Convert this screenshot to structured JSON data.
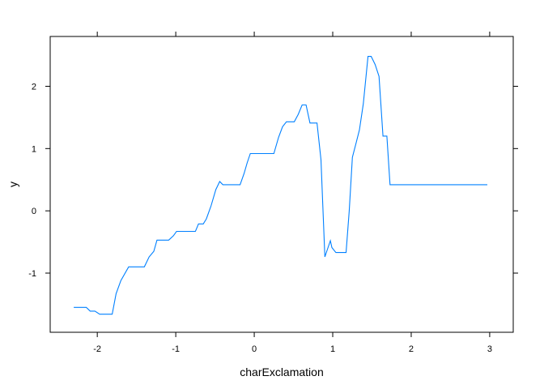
{
  "chart_data": {
    "type": "line",
    "title": "",
    "xlabel": "charExclamation",
    "ylabel": "y",
    "xlim": [
      -2.6,
      3.3
    ],
    "ylim": [
      -1.95,
      2.8
    ],
    "grid": false,
    "legend": "none",
    "colors": {
      "line": "#0080ff",
      "frame": "#000000"
    },
    "x_ticks": [
      -2,
      -1,
      0,
      1,
      2,
      3
    ],
    "x_tick_labels": [
      "-2",
      "-1",
      "0",
      "1",
      "2",
      "3"
    ],
    "y_ticks": [
      -1,
      0,
      1,
      2
    ],
    "y_tick_labels": [
      "-1",
      "0",
      "1",
      "2"
    ],
    "series": [
      {
        "x": [
          -2.3,
          -2.14,
          -2.09,
          -2.03,
          -1.97,
          -1.81,
          -1.76,
          -1.7,
          -1.6,
          -1.55,
          -1.4,
          -1.34,
          -1.28,
          -1.24,
          -1.09,
          -1.03,
          -0.99,
          -0.89,
          -0.75,
          -0.71,
          -0.65,
          -0.61,
          -0.55,
          -0.49,
          -0.44,
          -0.4,
          -0.18,
          -0.13,
          -0.09,
          -0.05,
          0.0,
          0.25,
          0.31,
          0.36,
          0.41,
          0.51,
          0.56,
          0.61,
          0.66,
          0.71,
          0.75,
          0.8,
          0.85,
          0.9,
          0.94,
          0.97,
          0.99,
          1.04,
          1.07,
          1.17,
          1.21,
          1.25,
          1.3,
          1.34,
          1.39,
          1.45,
          1.49,
          1.54,
          1.59,
          1.64,
          1.69,
          1.73,
          1.79,
          2.97
        ],
        "y": [
          -1.55,
          -1.55,
          -1.61,
          -1.61,
          -1.66,
          -1.66,
          -1.33,
          -1.12,
          -0.9,
          -0.9,
          -0.9,
          -0.74,
          -0.65,
          -0.47,
          -0.47,
          -0.4,
          -0.33,
          -0.33,
          -0.33,
          -0.21,
          -0.21,
          -0.13,
          0.08,
          0.34,
          0.47,
          0.42,
          0.42,
          0.6,
          0.77,
          0.92,
          0.92,
          0.92,
          1.18,
          1.35,
          1.43,
          1.43,
          1.55,
          1.7,
          1.7,
          1.41,
          1.41,
          1.41,
          0.82,
          -0.74,
          -0.59,
          -0.48,
          -0.59,
          -0.67,
          -0.67,
          -0.67,
          0.0,
          0.86,
          1.1,
          1.3,
          1.72,
          2.48,
          2.48,
          2.35,
          2.16,
          1.2,
          1.2,
          0.42,
          0.42,
          0.42
        ]
      }
    ]
  }
}
